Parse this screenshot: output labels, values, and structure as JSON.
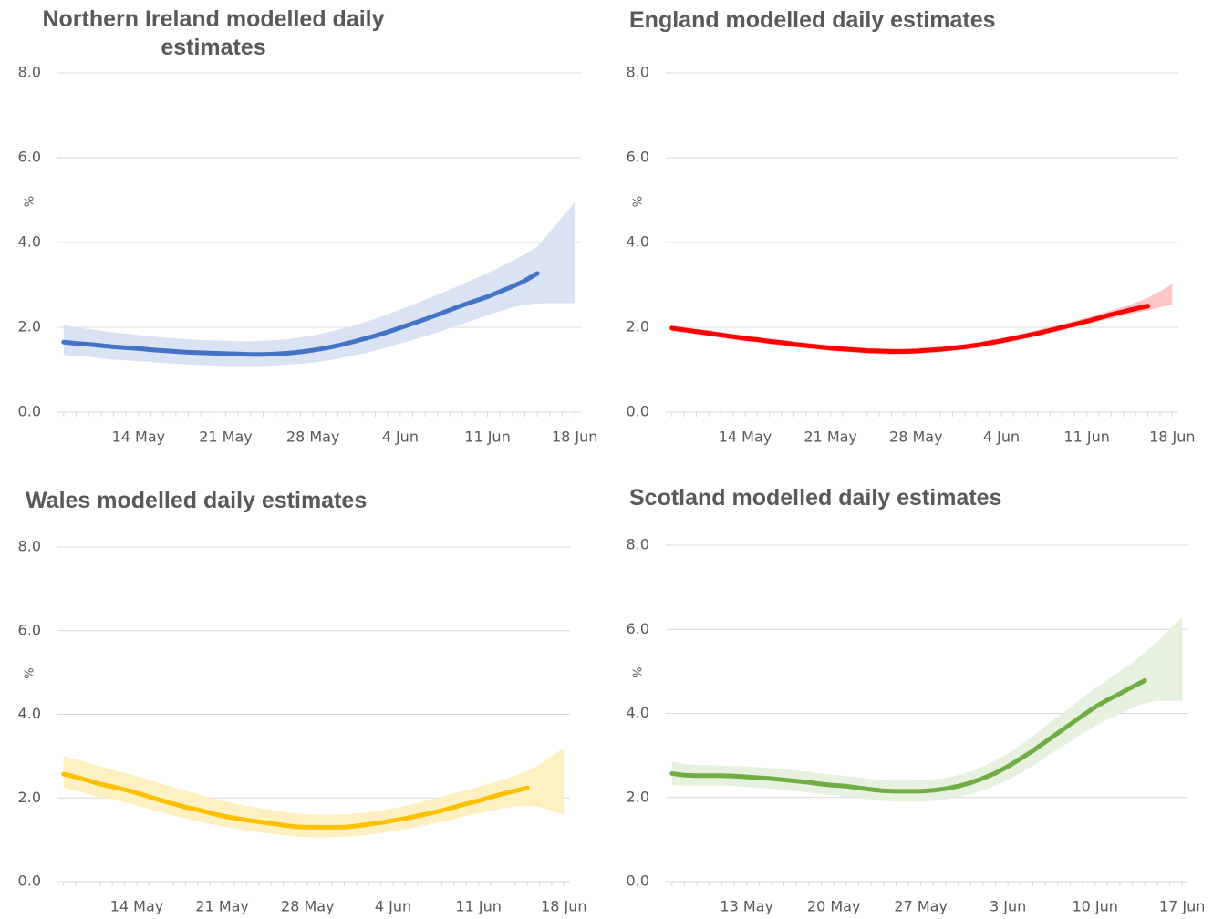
{
  "chart_data": [
    {
      "type": "line",
      "title": "Northern Ireland modelled daily estimates",
      "ylabel": "%",
      "categories": [
        null,
        null,
        null,
        null,
        null,
        null,
        "14 May",
        null,
        null,
        null,
        null,
        null,
        null,
        "21 May",
        null,
        null,
        null,
        null,
        null,
        null,
        "28 May",
        null,
        null,
        null,
        null,
        null,
        null,
        "4 Jun",
        null,
        null,
        null,
        null,
        null,
        null,
        "11 Jun",
        null,
        null,
        null,
        null,
        null,
        null,
        "18 Jun"
      ],
      "values": [
        1.65,
        1.62,
        1.6,
        1.57,
        1.54,
        1.52,
        1.5,
        1.47,
        1.45,
        1.43,
        1.41,
        1.4,
        1.39,
        1.38,
        1.37,
        1.36,
        1.36,
        1.37,
        1.39,
        1.42,
        1.46,
        1.51,
        1.57,
        1.64,
        1.72,
        1.8,
        1.89,
        1.99,
        2.09,
        2.19,
        2.3,
        2.41,
        2.52,
        2.62,
        2.72,
        2.84,
        2.96,
        3.1,
        3.27,
        null,
        null,
        null
      ],
      "lower": [
        1.35,
        1.32,
        1.3,
        1.27,
        1.24,
        1.22,
        1.2,
        1.18,
        1.16,
        1.14,
        1.12,
        1.11,
        1.1,
        1.09,
        1.09,
        1.09,
        1.09,
        1.1,
        1.12,
        1.14,
        1.17,
        1.21,
        1.26,
        1.32,
        1.38,
        1.45,
        1.53,
        1.62,
        1.7,
        1.79,
        1.88,
        1.98,
        2.08,
        2.18,
        2.28,
        2.38,
        2.47,
        2.53,
        2.56,
        2.57,
        2.57,
        2.57
      ],
      "upper": [
        2.05,
        2.0,
        1.96,
        1.92,
        1.88,
        1.85,
        1.82,
        1.79,
        1.76,
        1.74,
        1.72,
        1.7,
        1.69,
        1.68,
        1.67,
        1.67,
        1.68,
        1.7,
        1.72,
        1.76,
        1.81,
        1.87,
        1.94,
        2.02,
        2.11,
        2.2,
        2.31,
        2.42,
        2.53,
        2.65,
        2.77,
        2.89,
        3.02,
        3.15,
        3.28,
        3.42,
        3.57,
        3.72,
        3.9,
        4.25,
        4.6,
        4.95
      ],
      "color": "#4472c4",
      "band_color": "#dae3f3",
      "ylim": [
        0,
        8
      ],
      "yticks": [
        {
          "value": 0,
          "label": "0.0"
        },
        {
          "value": 2,
          "label": "2.0"
        },
        {
          "value": 4,
          "label": "4.0"
        },
        {
          "value": 6,
          "label": "6.0"
        },
        {
          "value": 8,
          "label": "8.0"
        }
      ],
      "grid": true
    },
    {
      "type": "line",
      "title": "England modelled daily estimates",
      "ylabel": "%",
      "categories": [
        null,
        null,
        null,
        null,
        null,
        null,
        "14 May",
        null,
        null,
        null,
        null,
        null,
        null,
        "21 May",
        null,
        null,
        null,
        null,
        null,
        null,
        "28 May",
        null,
        null,
        null,
        null,
        null,
        null,
        "4 Jun",
        null,
        null,
        null,
        null,
        null,
        null,
        "11 Jun",
        null,
        null,
        null,
        null,
        null,
        null,
        "18 Jun"
      ],
      "values": [
        1.98,
        1.94,
        1.9,
        1.86,
        1.82,
        1.78,
        1.74,
        1.71,
        1.67,
        1.64,
        1.6,
        1.57,
        1.54,
        1.51,
        1.49,
        1.47,
        1.45,
        1.44,
        1.43,
        1.43,
        1.44,
        1.46,
        1.48,
        1.51,
        1.54,
        1.58,
        1.63,
        1.68,
        1.74,
        1.8,
        1.86,
        1.93,
        2.0,
        2.07,
        2.14,
        2.22,
        2.3,
        2.37,
        2.44,
        2.5,
        null,
        null
      ],
      "lower": [
        1.91,
        1.87,
        1.83,
        1.79,
        1.75,
        1.71,
        1.67,
        1.64,
        1.6,
        1.57,
        1.53,
        1.5,
        1.47,
        1.44,
        1.42,
        1.4,
        1.38,
        1.37,
        1.36,
        1.36,
        1.37,
        1.39,
        1.41,
        1.44,
        1.47,
        1.51,
        1.56,
        1.61,
        1.67,
        1.73,
        1.79,
        1.86,
        1.93,
        2.0,
        2.07,
        2.14,
        2.21,
        2.28,
        2.34,
        2.4,
        2.47,
        2.53
      ],
      "upper": [
        2.05,
        2.01,
        1.97,
        1.93,
        1.89,
        1.85,
        1.81,
        1.78,
        1.74,
        1.71,
        1.67,
        1.64,
        1.61,
        1.58,
        1.56,
        1.54,
        1.52,
        1.51,
        1.5,
        1.5,
        1.51,
        1.53,
        1.55,
        1.58,
        1.61,
        1.65,
        1.7,
        1.75,
        1.81,
        1.87,
        1.94,
        2.01,
        2.08,
        2.15,
        2.23,
        2.31,
        2.4,
        2.48,
        2.58,
        2.7,
        2.85,
        3.02
      ],
      "color": "#ff0000",
      "band_color": "#ffc7c7",
      "ylim": [
        0,
        8
      ],
      "yticks": [
        {
          "value": 0,
          "label": "0.0"
        },
        {
          "value": 2,
          "label": "2.0"
        },
        {
          "value": 4,
          "label": "4.0"
        },
        {
          "value": 6,
          "label": "6.0"
        },
        {
          "value": 8,
          "label": "8.0"
        }
      ],
      "grid": true
    },
    {
      "type": "line",
      "title": "Wales modelled daily estimates",
      "ylabel": "%",
      "categories": [
        null,
        null,
        null,
        null,
        null,
        null,
        "14 May",
        null,
        null,
        null,
        null,
        null,
        null,
        "21 May",
        null,
        null,
        null,
        null,
        null,
        null,
        "28 May",
        null,
        null,
        null,
        null,
        null,
        null,
        "4 Jun",
        null,
        null,
        null,
        null,
        null,
        null,
        "11 Jun",
        null,
        null,
        null,
        null,
        null,
        null,
        "18 Jun"
      ],
      "values": [
        2.57,
        2.5,
        2.42,
        2.33,
        2.27,
        2.2,
        2.12,
        2.03,
        1.94,
        1.86,
        1.78,
        1.72,
        1.64,
        1.57,
        1.52,
        1.47,
        1.43,
        1.39,
        1.35,
        1.31,
        1.3,
        1.3,
        1.3,
        1.3,
        1.33,
        1.37,
        1.41,
        1.46,
        1.51,
        1.57,
        1.63,
        1.7,
        1.78,
        1.86,
        1.93,
        2.02,
        2.1,
        2.17,
        2.24,
        null,
        null,
        null
      ],
      "lower": [
        2.25,
        2.18,
        2.1,
        2.02,
        1.96,
        1.89,
        1.82,
        1.74,
        1.66,
        1.58,
        1.51,
        1.45,
        1.38,
        1.32,
        1.27,
        1.22,
        1.18,
        1.14,
        1.11,
        1.08,
        1.06,
        1.06,
        1.06,
        1.07,
        1.09,
        1.12,
        1.16,
        1.21,
        1.26,
        1.31,
        1.37,
        1.43,
        1.5,
        1.57,
        1.63,
        1.69,
        1.75,
        1.8,
        1.82,
        1.78,
        1.7,
        1.6
      ],
      "upper": [
        3.0,
        2.92,
        2.84,
        2.75,
        2.68,
        2.6,
        2.52,
        2.43,
        2.34,
        2.25,
        2.17,
        2.09,
        2.01,
        1.93,
        1.87,
        1.81,
        1.76,
        1.71,
        1.67,
        1.63,
        1.61,
        1.6,
        1.6,
        1.61,
        1.63,
        1.66,
        1.7,
        1.75,
        1.81,
        1.88,
        1.95,
        2.03,
        2.11,
        2.19,
        2.27,
        2.35,
        2.44,
        2.53,
        2.64,
        2.8,
        3.0,
        3.2
      ],
      "color": "#ffc000",
      "band_color": "#fff0c2",
      "ylim": [
        0,
        8
      ],
      "yticks": [
        {
          "value": 0,
          "label": "0.0"
        },
        {
          "value": 2,
          "label": "2.0"
        },
        {
          "value": 4,
          "label": "4.0"
        },
        {
          "value": 6,
          "label": "6.0"
        },
        {
          "value": 8,
          "label": "8.0"
        }
      ],
      "grid": true
    },
    {
      "type": "line",
      "title": "Scotland modelled daily estimates",
      "ylabel": "%",
      "categories": [
        null,
        null,
        null,
        null,
        null,
        null,
        "13 May",
        null,
        null,
        null,
        null,
        null,
        null,
        "20 May",
        null,
        null,
        null,
        null,
        null,
        null,
        "27 May",
        null,
        null,
        null,
        null,
        null,
        null,
        "3 Jun",
        null,
        null,
        null,
        null,
        null,
        null,
        "10 Jun",
        null,
        null,
        null,
        null,
        null,
        null,
        "17 Jun"
      ],
      "values": [
        2.57,
        2.53,
        2.52,
        2.52,
        2.52,
        2.51,
        2.49,
        2.47,
        2.45,
        2.42,
        2.39,
        2.36,
        2.32,
        2.29,
        2.27,
        2.23,
        2.19,
        2.16,
        2.15,
        2.15,
        2.15,
        2.17,
        2.21,
        2.27,
        2.35,
        2.46,
        2.58,
        2.74,
        2.92,
        3.11,
        3.32,
        3.53,
        3.74,
        3.95,
        4.15,
        4.32,
        4.47,
        4.63,
        4.78,
        null,
        null,
        null
      ],
      "lower": [
        2.3,
        2.28,
        2.28,
        2.28,
        2.28,
        2.27,
        2.25,
        2.23,
        2.21,
        2.18,
        2.15,
        2.12,
        2.08,
        2.05,
        2.02,
        1.98,
        1.95,
        1.92,
        1.9,
        1.9,
        1.9,
        1.92,
        1.96,
        2.01,
        2.08,
        2.17,
        2.28,
        2.42,
        2.58,
        2.76,
        2.95,
        3.14,
        3.33,
        3.52,
        3.7,
        3.86,
        4.0,
        4.13,
        4.24,
        4.3,
        4.3,
        4.3
      ],
      "upper": [
        2.85,
        2.8,
        2.77,
        2.77,
        2.76,
        2.75,
        2.74,
        2.72,
        2.7,
        2.67,
        2.64,
        2.61,
        2.57,
        2.54,
        2.51,
        2.48,
        2.44,
        2.41,
        2.4,
        2.4,
        2.41,
        2.43,
        2.47,
        2.53,
        2.62,
        2.74,
        2.88,
        3.05,
        3.25,
        3.46,
        3.69,
        3.92,
        4.15,
        4.38,
        4.6,
        4.8,
        5.0,
        5.2,
        5.45,
        5.7,
        6.0,
        6.3
      ],
      "color": "#70ad47",
      "band_color": "#e6f2df",
      "ylim": [
        0,
        8
      ],
      "yticks": [
        {
          "value": 0,
          "label": "0.0"
        },
        {
          "value": 2,
          "label": "2.0"
        },
        {
          "value": 4,
          "label": "4.0"
        },
        {
          "value": 6,
          "label": "6.0"
        },
        {
          "value": 8,
          "label": "8.0"
        }
      ],
      "grid": true
    }
  ]
}
